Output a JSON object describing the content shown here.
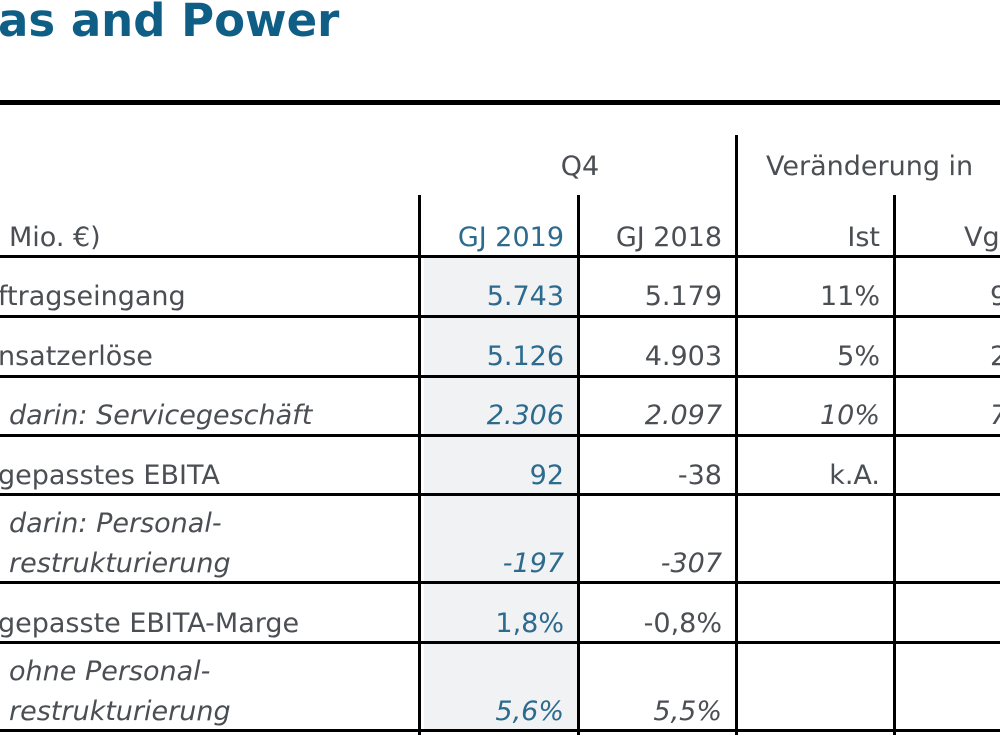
{
  "page": {
    "title": "as and Power"
  },
  "table": {
    "group_q4": "Q4",
    "group_change": "Veränderung in",
    "col_unit": "Mio. €)",
    "col_gj2019": "GJ 2019",
    "col_gj2018": "GJ 2018",
    "col_ist": "Ist",
    "col_vg": "Vg",
    "rows": [
      {
        "label": "ftragseingang",
        "gj2019": "5.743",
        "gj2018": "5.179",
        "ist": "11%",
        "vg": "9"
      },
      {
        "label": "nsatzerlöse",
        "gj2019": "5.126",
        "gj2018": "4.903",
        "ist": "5%",
        "vg": "2"
      },
      {
        "label": "darin: Servicegeschäft",
        "gj2019": "2.306",
        "gj2018": "2.097",
        "ist": "10%",
        "vg": "7"
      },
      {
        "label": "gepasstes EBITA",
        "gj2019": "92",
        "gj2018": "-38",
        "ist": "k.A."
      },
      {
        "label_line1": "darin: Personal-",
        "label_line2": "restrukturierung",
        "gj2019": "-197",
        "gj2018": "-307"
      },
      {
        "label": "gepasste EBITA-Marge",
        "gj2019": "1,8%",
        "gj2018": "-0,8%"
      },
      {
        "label_line1": "ohne Personal-",
        "label_line2": "restrukturierung",
        "gj2019": "5,6%",
        "gj2018": "5,5%"
      }
    ]
  }
}
